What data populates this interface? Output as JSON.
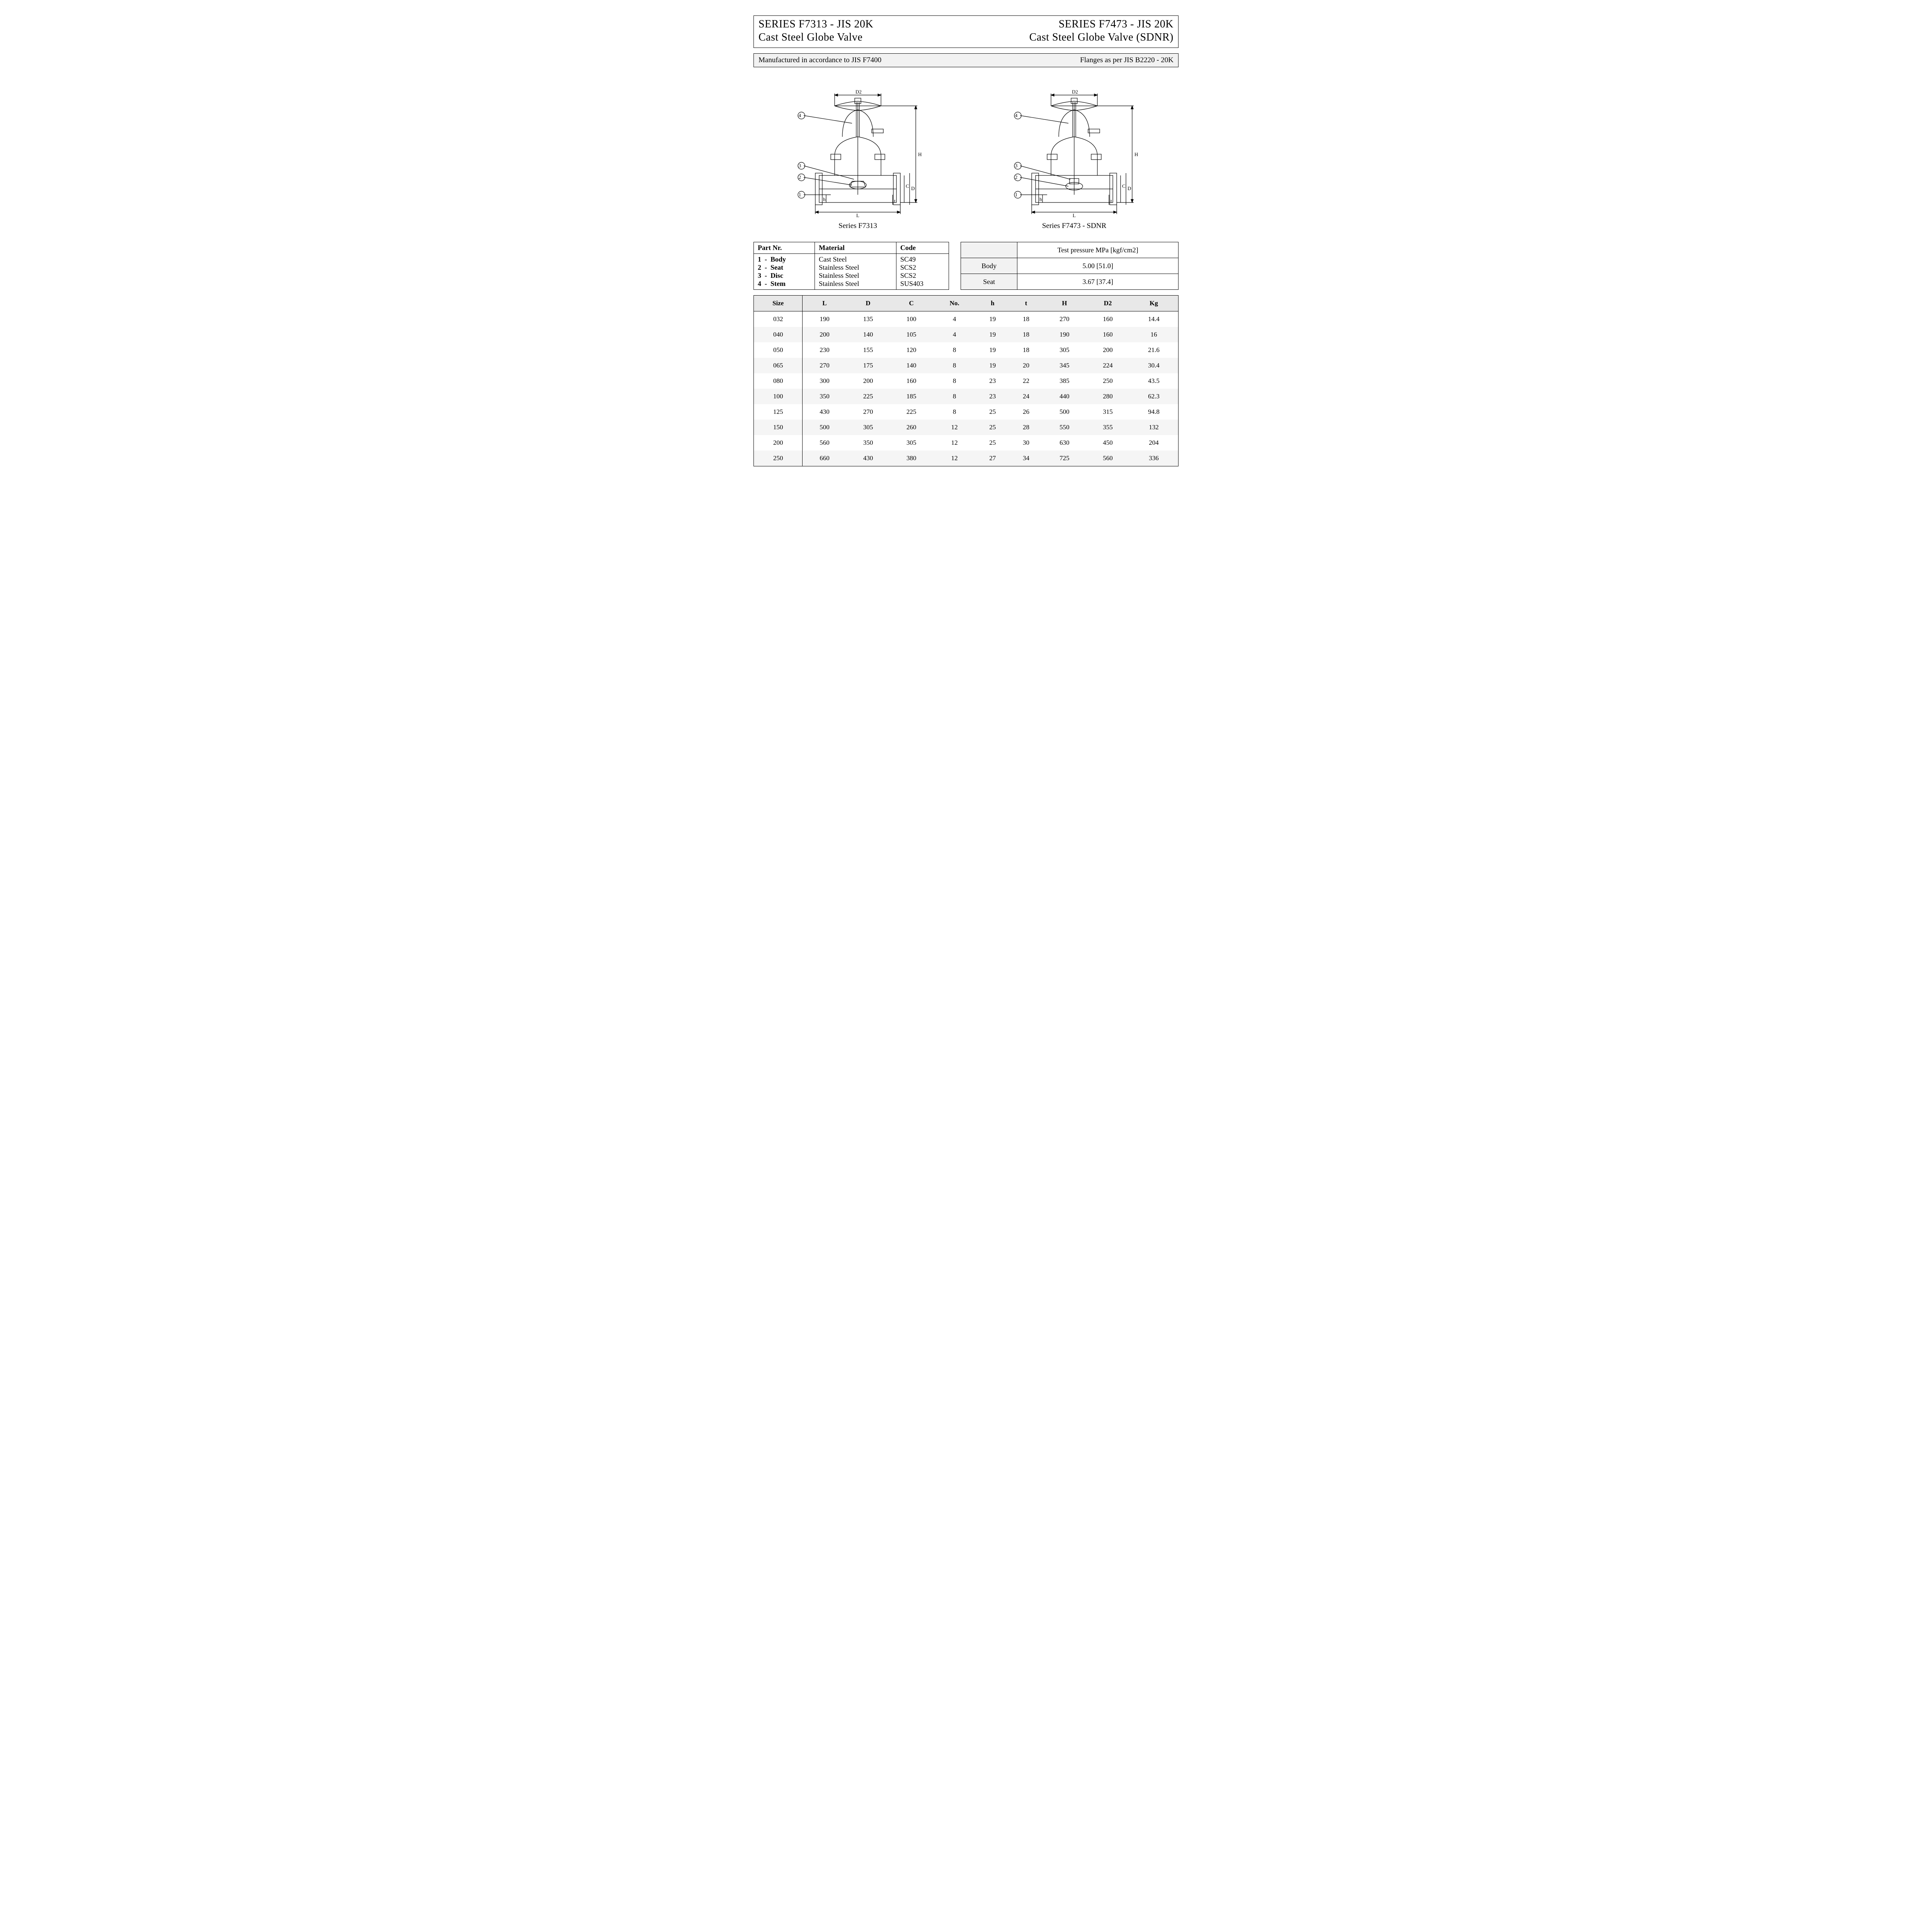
{
  "header": {
    "left_line1": "SERIES F7313 - JIS 20K",
    "left_line2": "Cast Steel Globe Valve",
    "right_line1": "SERIES F7473 - JIS 20K",
    "right_line2": "Cast Steel Globe Valve (SDNR)"
  },
  "note_bar": {
    "left": "Manufactured in accordance to JIS F7400",
    "right": "Flanges as per JIS B2220 - 20K"
  },
  "drawings": {
    "left_caption": "Series F7313",
    "right_caption": "Series F7473 - SDNR",
    "dimension_labels": [
      "D2",
      "H",
      "C",
      "D",
      "h",
      "t",
      "L"
    ],
    "callouts": [
      "1",
      "2",
      "3",
      "4"
    ]
  },
  "materials": {
    "headers": [
      "Part Nr.",
      "Material",
      "Code"
    ],
    "rows": [
      {
        "nr": "1",
        "name": "Body",
        "material": "Cast Steel",
        "code": "SC49"
      },
      {
        "nr": "2",
        "name": "Seat",
        "material": "Stainless Steel",
        "code": "SCS2"
      },
      {
        "nr": "3",
        "name": "Disc",
        "material": "Stainless Steel",
        "code": "SCS2"
      },
      {
        "nr": "4",
        "name": "Stem",
        "material": "Stainless Steel",
        "code": "SUS403"
      }
    ]
  },
  "test_pressure": {
    "header": "Test pressure MPa [kgf/cm2]",
    "rows": [
      {
        "label": "Body",
        "value": "5.00 [51.0]"
      },
      {
        "label": "Seat",
        "value": "3.67 [37.4]"
      }
    ]
  },
  "dimensions": {
    "headers": [
      "Size",
      "L",
      "D",
      "C",
      "No.",
      "h",
      "t",
      "H",
      "D2",
      "Kg"
    ],
    "rows": [
      [
        "032",
        "190",
        "135",
        "100",
        "4",
        "19",
        "18",
        "270",
        "160",
        "14.4"
      ],
      [
        "040",
        "200",
        "140",
        "105",
        "4",
        "19",
        "18",
        "190",
        "160",
        "16"
      ],
      [
        "050",
        "230",
        "155",
        "120",
        "8",
        "19",
        "18",
        "305",
        "200",
        "21.6"
      ],
      [
        "065",
        "270",
        "175",
        "140",
        "8",
        "19",
        "20",
        "345",
        "224",
        "30.4"
      ],
      [
        "080",
        "300",
        "200",
        "160",
        "8",
        "23",
        "22",
        "385",
        "250",
        "43.5"
      ],
      [
        "100",
        "350",
        "225",
        "185",
        "8",
        "23",
        "24",
        "440",
        "280",
        "62.3"
      ],
      [
        "125",
        "430",
        "270",
        "225",
        "8",
        "25",
        "26",
        "500",
        "315",
        "94.8"
      ],
      [
        "150",
        "500",
        "305",
        "260",
        "12",
        "25",
        "28",
        "550",
        "355",
        "132"
      ],
      [
        "200",
        "560",
        "350",
        "305",
        "12",
        "25",
        "30",
        "630",
        "450",
        "204"
      ],
      [
        "250",
        "660",
        "430",
        "380",
        "12",
        "27",
        "34",
        "725",
        "560",
        "336"
      ]
    ]
  },
  "styling": {
    "page_bg": "#ffffff",
    "border_color": "#000000",
    "zebra_even": "#f5f5f5",
    "zebra_odd": "#ffffff",
    "header_bg": "#e8e8e8",
    "notebar_bg": "#f2f2f2",
    "font_family": "Times New Roman",
    "title_fontsize_pt": 21,
    "body_fontsize_pt": 13
  }
}
